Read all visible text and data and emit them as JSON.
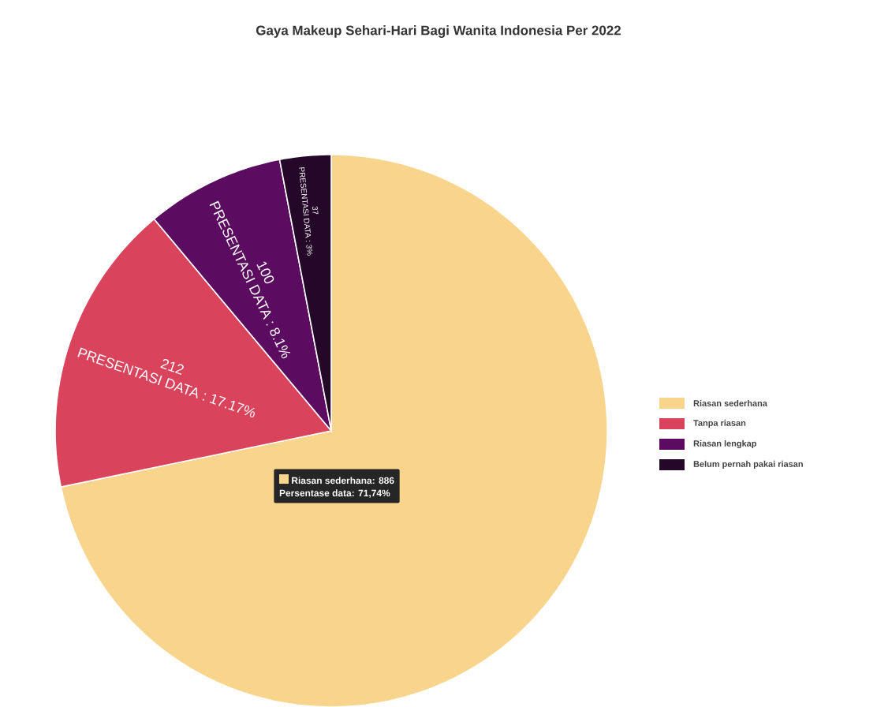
{
  "chart_data": {
    "type": "pie",
    "title": "Gaya Makeup Sehari-Hari Bagi Wanita Indonesia Per 2022",
    "categories": [
      "Riasan sederhana",
      "Tanpa riasan",
      "Riasan lengkap",
      "Belum pernah pakai riasan"
    ],
    "values": [
      886,
      212,
      100,
      37
    ],
    "colors": [
      "#f9d48c",
      "#d9435c",
      "#5c0c60",
      "#250829"
    ],
    "value_labels": [
      null,
      "212",
      "100",
      "37"
    ],
    "annotations": [
      "Riasan sederhana: 886",
      "Persentase data: 71,74%",
      "PRESENTASI DATA : 17.17%",
      "PRESENTASI DATA : 8.1%",
      "PRESENTASI DATA : 3%"
    ],
    "legend": "right"
  }
}
